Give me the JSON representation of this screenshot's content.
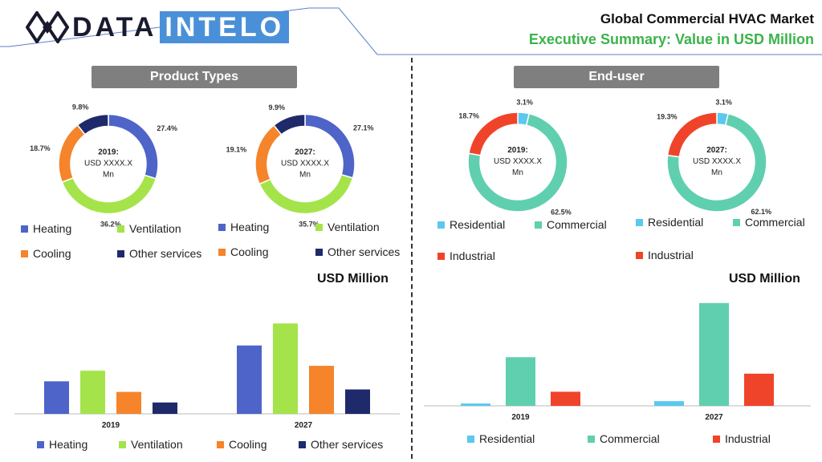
{
  "header": {
    "logo_left": "DATA",
    "logo_right": "INTELO",
    "title": "Global Commercial HVAC Market",
    "subtitle": "Executive Summary: Value in USD Million"
  },
  "sections": {
    "product_types": "Product Types",
    "end_user": "End-user",
    "unit_left": "USD Million",
    "unit_right": "USD Million"
  },
  "colors": {
    "heating": "#4e64c8",
    "ventilation": "#a4e44a",
    "cooling": "#f5842b",
    "other": "#1f2a6b",
    "residential": "#5bc8ee",
    "commercial": "#5fcfb0",
    "industrial": "#f0442a"
  },
  "legends": {
    "product": [
      "Heating",
      "Ventilation",
      "Cooling",
      "Other services"
    ],
    "enduser": [
      "Residential",
      "Commercial",
      "Industrial"
    ]
  },
  "chart_data": [
    {
      "type": "pie",
      "id": "product-2019",
      "center_lines": [
        "2019:",
        "USD XXXX.X",
        "Mn"
      ],
      "categories": [
        "Heating",
        "Ventilation",
        "Cooling",
        "Other services"
      ],
      "values": [
        27.4,
        36.2,
        18.7,
        9.8
      ],
      "labels": [
        "27.4%",
        "36.2%",
        "18.7%",
        "9.8%"
      ]
    },
    {
      "type": "pie",
      "id": "product-2027",
      "center_lines": [
        "2027:",
        "USD XXXX.X",
        "Mn"
      ],
      "categories": [
        "Heating",
        "Ventilation",
        "Cooling",
        "Other services"
      ],
      "values": [
        27.1,
        35.7,
        19.1,
        9.9
      ],
      "labels": [
        "27.1%",
        "35.7%",
        "19.1%",
        "9.9%"
      ]
    },
    {
      "type": "pie",
      "id": "enduser-2019",
      "center_lines": [
        "2019:",
        "USD XXXX.X",
        "Mn"
      ],
      "categories": [
        "Residential",
        "Commercial",
        "Industrial"
      ],
      "values": [
        3.1,
        62.5,
        18.7
      ],
      "labels": [
        "3.1%",
        "62.5%",
        "18.7%"
      ]
    },
    {
      "type": "pie",
      "id": "enduser-2027",
      "center_lines": [
        "2027:",
        "USD XXXX.X",
        "Mn"
      ],
      "categories": [
        "Residential",
        "Commercial",
        "Industrial"
      ],
      "values": [
        3.1,
        62.1,
        19.3
      ],
      "labels": [
        "3.1%",
        "62.1%",
        "19.3%"
      ]
    },
    {
      "type": "bar",
      "id": "product-bars",
      "ylabel": "USD Million",
      "categories": [
        "2019",
        "2027"
      ],
      "ylim": [
        0,
        130
      ],
      "series": [
        {
          "name": "Heating",
          "values": [
            40,
            84
          ]
        },
        {
          "name": "Ventilation",
          "values": [
            53,
            111
          ]
        },
        {
          "name": "Cooling",
          "values": [
            27,
            59
          ]
        },
        {
          "name": "Other services",
          "values": [
            14,
            30
          ]
        }
      ]
    },
    {
      "type": "bar",
      "id": "enduser-bars",
      "ylabel": "USD Million",
      "categories": [
        "2019",
        "2027"
      ],
      "ylim": [
        0,
        140
      ],
      "series": [
        {
          "name": "Residential",
          "values": [
            3,
            6
          ]
        },
        {
          "name": "Commercial",
          "values": [
            62,
            131
          ]
        },
        {
          "name": "Industrial",
          "values": [
            18,
            41
          ]
        }
      ]
    }
  ]
}
